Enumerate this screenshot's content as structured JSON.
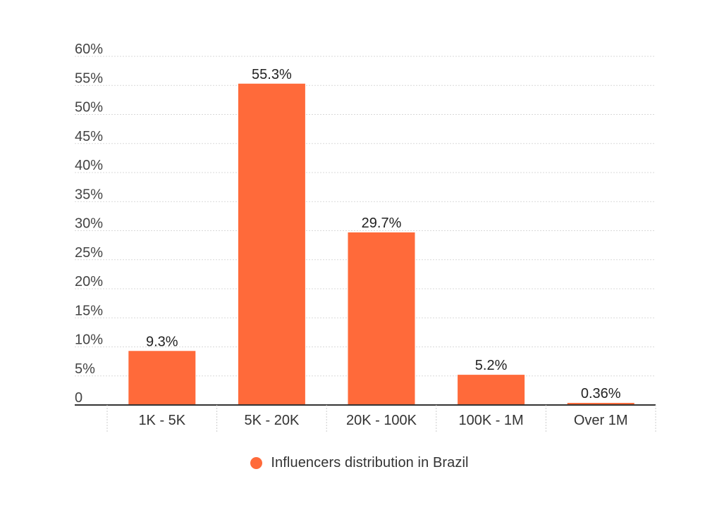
{
  "chart_data": {
    "type": "bar",
    "title": "",
    "xlabel": "",
    "ylabel": "",
    "categories": [
      "1K - 5K",
      "5K - 20K",
      "20K - 100K",
      "100K - 1M",
      "Over 1M"
    ],
    "series": [
      {
        "name": "Influencers distribution in Brazil",
        "values": [
          9.3,
          55.3,
          29.7,
          5.2,
          0.36
        ],
        "data_labels": [
          "9.3%",
          "55.3%",
          "29.7%",
          "5.2%",
          "0.36%"
        ],
        "color": "#FF6A3A"
      }
    ],
    "ylim": [
      0,
      60
    ],
    "yticks": [
      0,
      5,
      10,
      15,
      20,
      25,
      30,
      35,
      40,
      45,
      50,
      55,
      60
    ],
    "ytick_labels": [
      "0",
      "5%",
      "10%",
      "15%",
      "20%",
      "25%",
      "30%",
      "35%",
      "40%",
      "45%",
      "50%",
      "55%",
      "60%"
    ],
    "grid": true,
    "legend_position": "bottom"
  },
  "legend": {
    "label": "Influencers distribution in Brazil",
    "color": "#FF6A3A"
  }
}
